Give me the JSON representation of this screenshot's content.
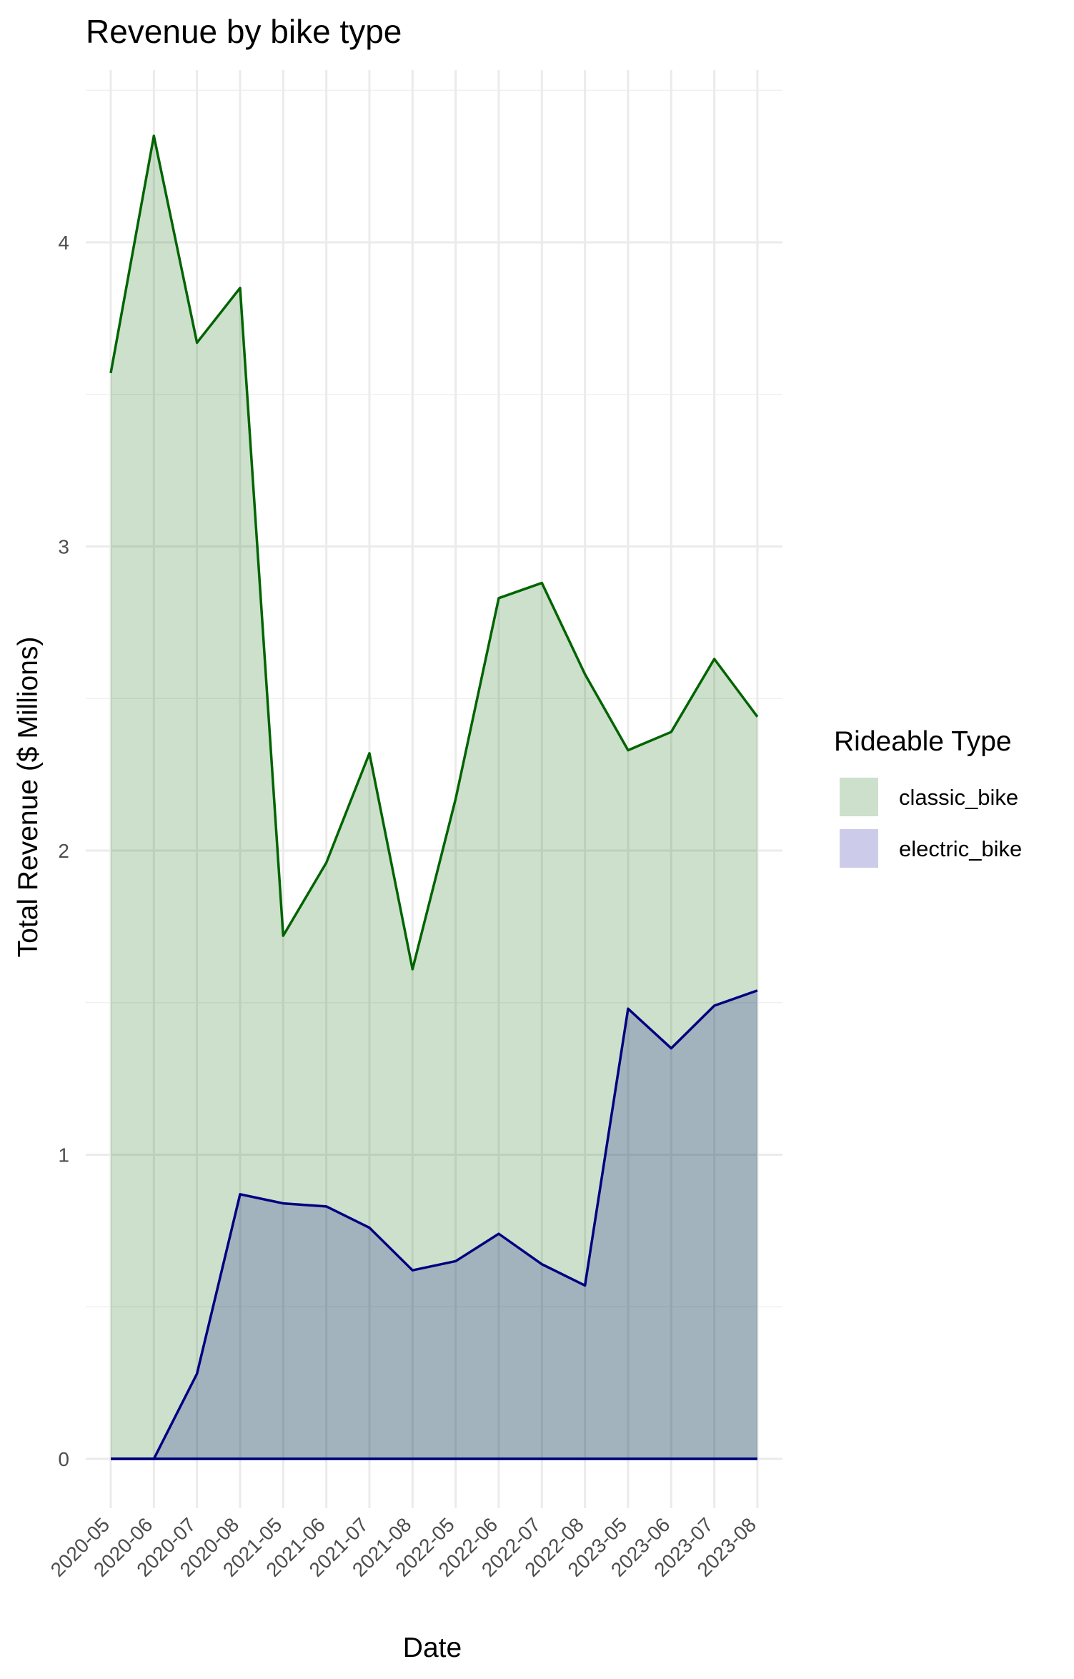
{
  "chart_data": {
    "type": "area",
    "title": "Revenue by bike type",
    "xlabel": "Date",
    "ylabel": "Total Revenue ($ Millions)",
    "ylim": [
      -0.15,
      4.55
    ],
    "y_ticks": [
      0,
      1,
      2,
      3,
      4
    ],
    "categories": [
      "2020-05",
      "2020-06",
      "2020-07",
      "2020-08",
      "2021-05",
      "2021-06",
      "2021-07",
      "2021-08",
      "2022-05",
      "2022-06",
      "2022-07",
      "2022-08",
      "2023-05",
      "2023-06",
      "2023-07",
      "2023-08"
    ],
    "series": [
      {
        "name": "classic_bike",
        "fill": "#cce0cc",
        "line": "#006400",
        "values": [
          3.57,
          4.35,
          3.67,
          3.85,
          1.72,
          1.96,
          2.32,
          1.61,
          2.17,
          2.83,
          2.88,
          2.58,
          2.33,
          2.39,
          2.63,
          2.44
        ]
      },
      {
        "name": "electric_bike",
        "fill": "#9fb0c0",
        "line": "#000080",
        "legend_fill": "#ccccea",
        "values": [
          0,
          0,
          0.28,
          0.87,
          0.84,
          0.83,
          0.76,
          0.62,
          0.65,
          0.74,
          0.64,
          0.57,
          1.48,
          1.35,
          1.49,
          1.54
        ]
      }
    ],
    "legend": {
      "title": "Rideable Type",
      "position": "right"
    },
    "grid": true
  }
}
